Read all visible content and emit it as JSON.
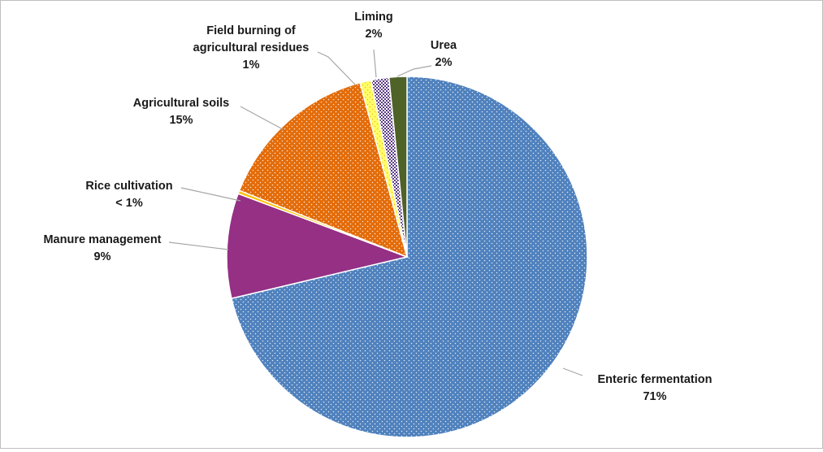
{
  "chart_data": {
    "type": "pie",
    "title": "",
    "start_angle_deg": 0,
    "direction": "clockwise",
    "slices": [
      {
        "name": "Enteric fermentation",
        "value": 71.3,
        "label_lines": [
          "Enteric fermentation",
          "71%"
        ],
        "color": "#4f81bd",
        "pattern": "dots-white"
      },
      {
        "name": "Manure management",
        "value": 9.4,
        "label_lines": [
          "Manure management",
          "9%"
        ],
        "color": "#953085",
        "pattern": "none"
      },
      {
        "name": "Rice cultivation",
        "value": 0.3,
        "label_lines": [
          "Rice cultivation",
          "< 1%"
        ],
        "color": "#ffc000",
        "pattern": "none"
      },
      {
        "name": "Agricultural soils",
        "value": 14.8,
        "label_lines": [
          "Agricultural soils",
          "15%"
        ],
        "color": "#e36c09",
        "pattern": "dots-white"
      },
      {
        "name": "Field burning of agricultural residues",
        "value": 1.0,
        "label_lines": [
          "Field burning of",
          "agricultural  residues",
          "1%"
        ],
        "color": "#ffff66",
        "pattern": "dots-orange"
      },
      {
        "name": "Liming",
        "value": 1.6,
        "label_lines": [
          "Liming",
          "2%"
        ],
        "color": "#ffffff",
        "pattern": "checker-purple"
      },
      {
        "name": "Urea",
        "value": 1.6,
        "label_lines": [
          "Urea",
          "2%"
        ],
        "color": "#4f6228",
        "pattern": "none"
      }
    ]
  }
}
